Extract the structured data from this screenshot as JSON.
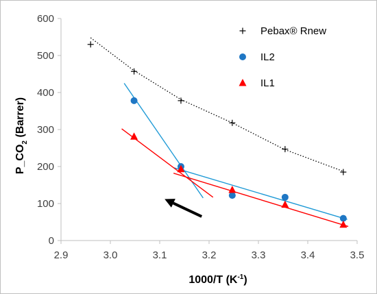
{
  "chart_data": {
    "type": "scatter",
    "xlabel": "1000/T (K",
    "xlabel_sup": "-1",
    "xlabel_close": ")",
    "ylabel": "P_CO",
    "ylabel_sub": "2",
    "ylabel_rest": " (Barrer)",
    "xlim": [
      2.9,
      3.5
    ],
    "ylim": [
      0,
      600
    ],
    "xticks": [
      "2.9",
      "3.0",
      "3.1",
      "3.2",
      "3.3",
      "3.4",
      "3.5"
    ],
    "yticks": [
      "0",
      "100",
      "200",
      "300",
      "400",
      "500",
      "600"
    ],
    "grid": false,
    "legend_position": "top-right",
    "series": [
      {
        "name": "Pebax® Rnew",
        "marker": "plus",
        "color": "#000000",
        "x": [
          2.96,
          3.048,
          3.143,
          3.247,
          3.354,
          3.472
        ],
        "y": [
          530,
          457,
          378,
          318,
          247,
          185
        ],
        "trend": {
          "style": "dotted",
          "color": "#000000",
          "x": [
            2.96,
            3.047,
            3.143,
            3.247,
            3.353,
            3.472
          ],
          "y": [
            548,
            460,
            381,
            318,
            246,
            187
          ]
        }
      },
      {
        "name": "IL2",
        "marker": "circle",
        "color": "#1f77c4",
        "x": [
          3.048,
          3.143,
          3.247,
          3.354,
          3.472
        ],
        "y": [
          378,
          200,
          122,
          117,
          60
        ],
        "trends": [
          {
            "color": "#1f9ad6",
            "x": [
              3.028,
              3.188
            ],
            "y": [
              425,
              115
            ]
          },
          {
            "color": "#1f9ad6",
            "x": [
              3.128,
              3.48
            ],
            "y": [
              197,
              57
            ]
          }
        ]
      },
      {
        "name": "IL1",
        "marker": "triangle",
        "color": "#ff0000",
        "x": [
          3.048,
          3.143,
          3.247,
          3.354,
          3.472
        ],
        "y": [
          281,
          193,
          137,
          97,
          43
        ],
        "trends": [
          {
            "color": "#ff0000",
            "x": [
              3.023,
              3.208
            ],
            "y": [
              302,
              117
            ]
          },
          {
            "color": "#ff0000",
            "x": [
              3.128,
              3.482
            ],
            "y": [
              182,
              38
            ]
          }
        ]
      }
    ],
    "annotation_arrow": {
      "color": "#000000",
      "from": [
        3.185,
        65
      ],
      "to": [
        3.11,
        112
      ]
    }
  }
}
